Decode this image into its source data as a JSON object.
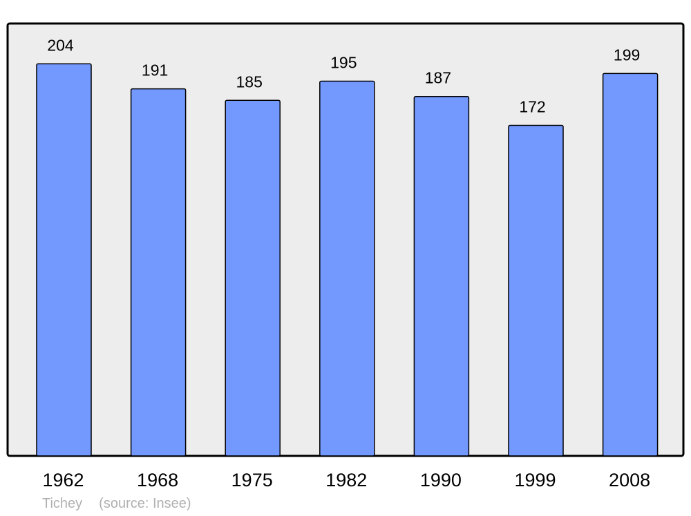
{
  "chart_data": {
    "type": "bar",
    "categories": [
      "1962",
      "1968",
      "1975",
      "1982",
      "1990",
      "1999",
      "2008"
    ],
    "values": [
      204,
      191,
      185,
      195,
      187,
      172,
      199
    ],
    "title": "",
    "xlabel": "",
    "ylabel": "",
    "ylim": [
      0,
      225
    ],
    "grid": false,
    "data_labels": true,
    "colors": {
      "bar": "#7399ff",
      "bar_stroke": "#000000",
      "plot_background": "#ededed",
      "frame": "#000000"
    }
  },
  "footer": {
    "place": "Tichey",
    "source": "(source: Insee)"
  }
}
